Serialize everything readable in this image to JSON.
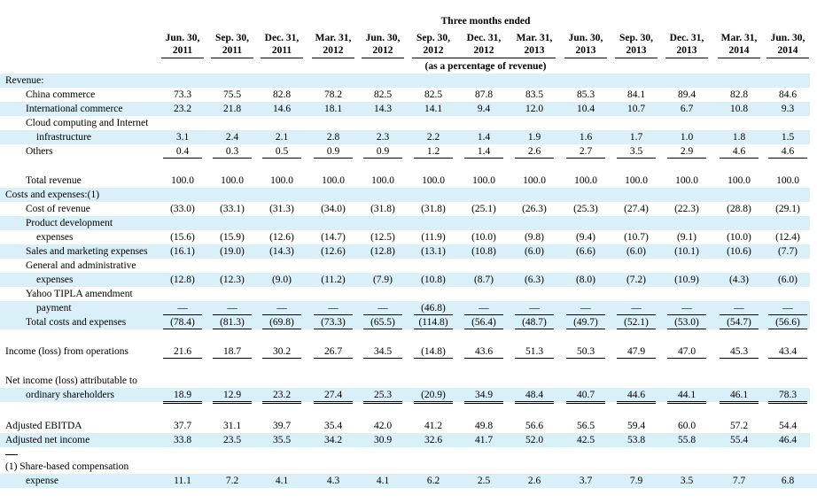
{
  "header": {
    "period_title": "Three months ended",
    "subtitle": "(as a percentage of revenue)",
    "columns": [
      [
        "Jun. 30,",
        "2011"
      ],
      [
        "Sep. 30,",
        "2011"
      ],
      [
        "Dec. 31,",
        "2011"
      ],
      [
        "Mar. 31,",
        "2012"
      ],
      [
        "Jun. 30,",
        "2012"
      ],
      [
        "Sep. 30,",
        "2012"
      ],
      [
        "Dec. 31,",
        "2012"
      ],
      [
        "Mar. 31,",
        "2013"
      ],
      [
        "Jun. 30,",
        "2013"
      ],
      [
        "Sep. 30,",
        "2013"
      ],
      [
        "Dec. 31,",
        "2013"
      ],
      [
        "Mar. 31,",
        "2014"
      ],
      [
        "Jun. 30,",
        "2014"
      ]
    ]
  },
  "rows": [
    {
      "label": "Revenue:",
      "indent": 0,
      "values": null
    },
    {
      "label": "China commerce",
      "indent": 1,
      "values": [
        "73.3",
        "75.5",
        "82.8",
        "78.2",
        "82.5",
        "82.5",
        "87.8",
        "83.5",
        "85.3",
        "84.1",
        "89.4",
        "82.8",
        "84.6"
      ]
    },
    {
      "label": "International commerce",
      "indent": 1,
      "values": [
        "23.2",
        "21.8",
        "14.6",
        "18.1",
        "14.3",
        "14.1",
        "9.4",
        "12.0",
        "10.4",
        "10.7",
        "6.7",
        "10.8",
        "9.3"
      ]
    },
    {
      "label": "Cloud computing and Internet",
      "indent": 1,
      "values": null
    },
    {
      "label": "infrastructure",
      "indent": 2,
      "values": [
        "3.1",
        "2.4",
        "2.1",
        "2.8",
        "2.3",
        "2.2",
        "1.4",
        "1.9",
        "1.6",
        "1.7",
        "1.0",
        "1.8",
        "1.5"
      ]
    },
    {
      "label": "Others",
      "indent": 1,
      "values": [
        "0.4",
        "0.3",
        "0.5",
        "0.9",
        "0.9",
        "1.2",
        "1.4",
        "2.6",
        "2.7",
        "3.5",
        "2.9",
        "4.6",
        "4.6"
      ]
    },
    {
      "label": "Total revenue",
      "indent": 1,
      "values": [
        "100.0",
        "100.0",
        "100.0",
        "100.0",
        "100.0",
        "100.0",
        "100.0",
        "100.0",
        "100.0",
        "100.0",
        "100.0",
        "100.0",
        "100.0"
      ]
    },
    {
      "label": "Costs and expenses:(1)",
      "indent": 0,
      "values": null
    },
    {
      "label": "Cost of revenue",
      "indent": 1,
      "values": [
        "(33.0)",
        "(33.1)",
        "(31.3)",
        "(34.0)",
        "(31.8)",
        "(31.8)",
        "(25.1)",
        "(26.3)",
        "(25.3)",
        "(27.4)",
        "(22.3)",
        "(28.8)",
        "(29.1)"
      ]
    },
    {
      "label": "Product development",
      "indent": 1,
      "values": null
    },
    {
      "label": "expenses",
      "indent": 2,
      "values": [
        "(15.6)",
        "(15.9)",
        "(12.6)",
        "(14.7)",
        "(12.5)",
        "(11.9)",
        "(10.0)",
        "(9.8)",
        "(9.4)",
        "(10.7)",
        "(9.1)",
        "(10.0)",
        "(12.4)"
      ]
    },
    {
      "label": "Sales and marketing expenses",
      "indent": 1,
      "values": [
        "(16.1)",
        "(19.0)",
        "(14.3)",
        "(12.6)",
        "(12.8)",
        "(13.1)",
        "(10.8)",
        "(6.0)",
        "(6.6)",
        "(6.0)",
        "(10.1)",
        "(10.6)",
        "(7.7)"
      ]
    },
    {
      "label": "General and administrative",
      "indent": 1,
      "values": null
    },
    {
      "label": "expenses",
      "indent": 2,
      "values": [
        "(12.8)",
        "(12.3)",
        "(9.0)",
        "(11.2)",
        "(7.9)",
        "(10.8)",
        "(8.7)",
        "(6.3)",
        "(8.0)",
        "(7.2)",
        "(10.9)",
        "(4.3)",
        "(6.0)"
      ]
    },
    {
      "label": "Yahoo TIPLA amendment",
      "indent": 1,
      "values": null
    },
    {
      "label": "payment",
      "indent": 2,
      "values": [
        "—",
        "—",
        "—",
        "—",
        "—",
        "(46.8)",
        "—",
        "—",
        "—",
        "—",
        "—",
        "—",
        "—"
      ]
    },
    {
      "label": "Total costs and expenses",
      "indent": 1,
      "values": [
        "(78.4)",
        "(81.3)",
        "(69.8)",
        "(73.3)",
        "(65.5)",
        "(114.8)",
        "(56.4)",
        "(48.7)",
        "(49.7)",
        "(52.1)",
        "(53.0)",
        "(54.7)",
        "(56.6)"
      ]
    },
    {
      "label": "Income (loss) from operations",
      "indent": 0,
      "values": [
        "21.6",
        "18.7",
        "30.2",
        "26.7",
        "34.5",
        "(14.8)",
        "43.6",
        "51.3",
        "50.3",
        "47.9",
        "47.0",
        "45.3",
        "43.4"
      ]
    },
    {
      "label": "Net income (loss) attributable to",
      "indent": 0,
      "values": null
    },
    {
      "label": "ordinary shareholders",
      "indent": 1,
      "values": [
        "18.9",
        "12.9",
        "23.2",
        "27.4",
        "25.3",
        "(20.9)",
        "34.9",
        "48.4",
        "40.7",
        "44.6",
        "44.1",
        "46.1",
        "78.3"
      ]
    },
    {
      "label": "Adjusted EBITDA",
      "indent": 0,
      "values": [
        "37.7",
        "31.1",
        "39.7",
        "35.4",
        "42.0",
        "41.2",
        "49.8",
        "56.6",
        "56.5",
        "59.4",
        "60.0",
        "57.2",
        "54.4"
      ]
    },
    {
      "label": "Adjusted net income",
      "indent": 0,
      "values": [
        "33.8",
        "23.5",
        "35.5",
        "34.2",
        "30.9",
        "32.6",
        "41.7",
        "52.0",
        "42.5",
        "53.8",
        "55.8",
        "55.4",
        "46.4"
      ]
    },
    {
      "label": "(1) Share-based compensation",
      "indent": 0,
      "values": null
    },
    {
      "label": "expense",
      "indent": 1,
      "values": [
        "11.1",
        "7.2",
        "4.1",
        "4.3",
        "4.1",
        "6.2",
        "2.5",
        "2.6",
        "3.7",
        "7.9",
        "3.5",
        "7.7",
        "6.8"
      ]
    }
  ]
}
